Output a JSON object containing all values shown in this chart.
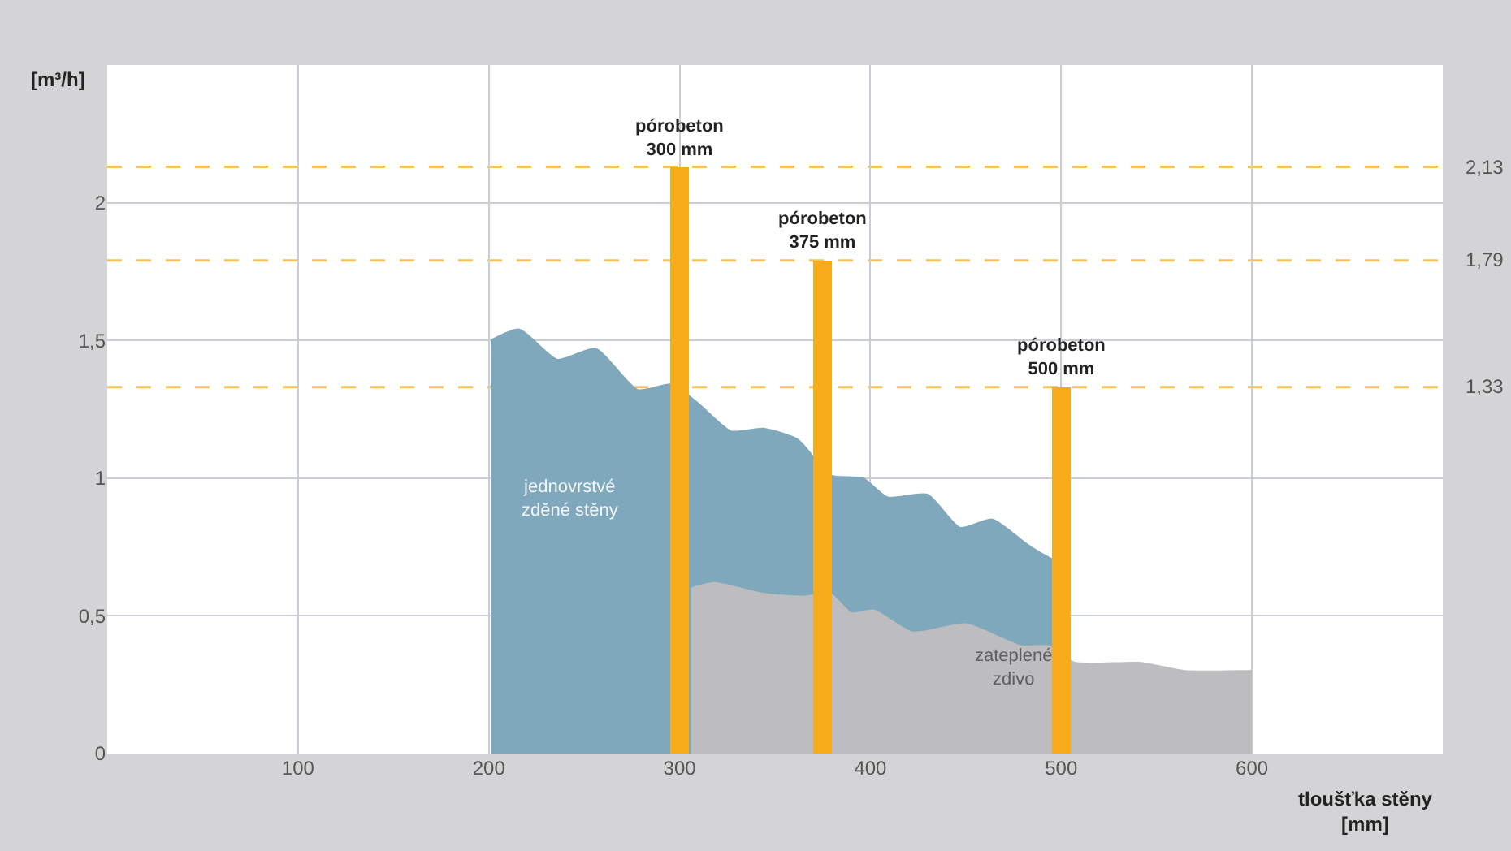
{
  "chart_data": {
    "type": "area",
    "xlabel": "tloušťka stěny [mm]",
    "ylabel": "[m³/h]",
    "xlim": [
      0,
      700
    ],
    "ylim": [
      0,
      2.5
    ],
    "xticks": [
      100,
      200,
      300,
      400,
      500,
      600
    ],
    "yticks": [
      0,
      {
        "value": 0.5,
        "label": "0,5"
      },
      1,
      {
        "value": 1.5,
        "label": "1,5"
      },
      2
    ],
    "grid": true,
    "marker": "none",
    "series": [
      {
        "name": "jednovrstvé zděné stěny",
        "color": "#80a8bc",
        "x": [
          201,
          216,
          236,
          256,
          278,
          296,
          310,
          327,
          344,
          362,
          379,
          396,
          409,
          430,
          447,
          464,
          482,
          494,
          497
        ],
        "values": [
          1.5,
          1.54,
          1.43,
          1.47,
          1.32,
          1.34,
          1.27,
          1.17,
          1.18,
          1.14,
          1.01,
          1.0,
          0.93,
          0.94,
          0.82,
          0.85,
          0.76,
          0.71,
          0.7
        ]
      },
      {
        "name": "zateplené zdivo",
        "color": "#bdbdbf",
        "x": [
          306,
          318,
          344,
          365,
          379,
          390,
          402,
          422,
          450,
          479,
          494,
          507,
          541,
          565,
          593,
          600
        ],
        "values": [
          0.6,
          0.62,
          0.58,
          0.57,
          0.58,
          0.51,
          0.52,
          0.44,
          0.47,
          0.39,
          0.39,
          0.33,
          0.33,
          0.3,
          0.3,
          0.3
        ]
      },
      {
        "type": "bar",
        "color": "#f6ab1a",
        "x": [
          300,
          375,
          500
        ],
        "values": [
          2.13,
          1.79,
          1.33
        ]
      }
    ],
    "ref_lines": [
      {
        "axis": "y",
        "value": 2.13,
        "label": "2,13",
        "color": "#f7c25a",
        "line_style": "dashed"
      },
      {
        "axis": "y",
        "value": 1.79,
        "label": "1,79",
        "color": "#f7c25a",
        "line_style": "dashed"
      },
      {
        "axis": "y",
        "value": 1.33,
        "label": "1,33",
        "color": "#f7c25a",
        "line_style": "dashed"
      }
    ],
    "annotations": [
      {
        "text": "pórobeton\n300 mm",
        "x": 300,
        "y": 2.13
      },
      {
        "text": "pórobeton\n375 mm",
        "x": 375,
        "y": 1.79
      },
      {
        "text": "pórobeton\n500 mm",
        "x": 500,
        "y": 1.33
      }
    ]
  }
}
